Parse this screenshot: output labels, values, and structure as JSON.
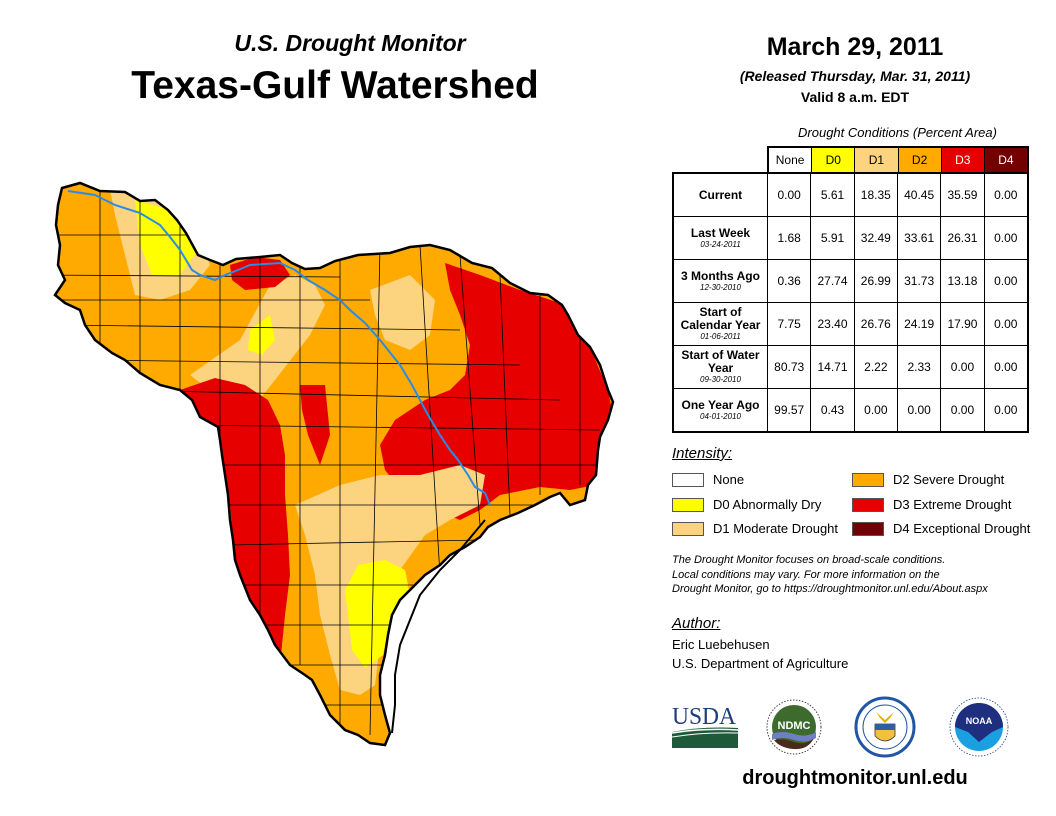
{
  "header": {
    "subtitle": "U.S. Drought Monitor",
    "title": "Texas-Gulf Watershed",
    "date": "March 29, 2011",
    "released": "(Released Thursday, Mar. 31, 2011)",
    "valid": "Valid 8 a.m. EDT"
  },
  "table": {
    "caption": "Drought Conditions (Percent Area)",
    "columns": [
      {
        "label": "None",
        "color": "#ffffff",
        "text_color": "#000000"
      },
      {
        "label": "D0",
        "color": "#ffff00",
        "text_color": "#000000"
      },
      {
        "label": "D1",
        "color": "#fcd37f",
        "text_color": "#000000"
      },
      {
        "label": "D2",
        "color": "#ffaa00",
        "text_color": "#000000"
      },
      {
        "label": "D3",
        "color": "#e60000",
        "text_color": "#ffffff"
      },
      {
        "label": "D4",
        "color": "#730000",
        "text_color": "#ffffff"
      }
    ],
    "rows": [
      {
        "label": "Current",
        "date": "",
        "values": [
          "0.00",
          "5.61",
          "18.35",
          "40.45",
          "35.59",
          "0.00"
        ]
      },
      {
        "label": "Last Week",
        "date": "03-24-2011",
        "values": [
          "1.68",
          "5.91",
          "32.49",
          "33.61",
          "26.31",
          "0.00"
        ]
      },
      {
        "label": "3 Months Ago",
        "date": "12-30-2010",
        "values": [
          "0.36",
          "27.74",
          "26.99",
          "31.73",
          "13.18",
          "0.00"
        ]
      },
      {
        "label": "Start of Calendar Year",
        "date": "01-06-2011",
        "values": [
          "7.75",
          "23.40",
          "26.76",
          "24.19",
          "17.90",
          "0.00"
        ]
      },
      {
        "label": "Start of Water Year",
        "date": "09-30-2010",
        "values": [
          "80.73",
          "14.71",
          "2.22",
          "2.33",
          "0.00",
          "0.00"
        ]
      },
      {
        "label": "One Year Ago",
        "date": "04-01-2010",
        "values": [
          "99.57",
          "0.43",
          "0.00",
          "0.00",
          "0.00",
          "0.00"
        ]
      }
    ]
  },
  "legend": {
    "title": "Intensity:",
    "items": [
      {
        "label": "None",
        "color": "#ffffff"
      },
      {
        "label": "D0 Abnormally Dry",
        "color": "#ffff00"
      },
      {
        "label": "D1 Moderate Drought",
        "color": "#fcd37f"
      },
      {
        "label": "D2 Severe Drought",
        "color": "#ffaa00"
      },
      {
        "label": "D3 Extreme Drought",
        "color": "#e60000"
      },
      {
        "label": "D4 Exceptional Drought",
        "color": "#730000"
      }
    ]
  },
  "note": {
    "line1": "The Drought Monitor focuses on broad-scale conditions.",
    "line2": "Local conditions may vary. For more information on the",
    "line3": "Drought Monitor, go to https://droughtmonitor.unl.edu/About.aspx"
  },
  "author": {
    "label": "Author:",
    "name": "Eric Luebehusen",
    "org": "U.S. Department of Agriculture"
  },
  "logos": {
    "usda": "USDA",
    "ndmc": "NDMC",
    "commerce": "Department of Commerce",
    "noaa": "NOAA"
  },
  "footer": {
    "site": "droughtmonitor.unl.edu"
  },
  "map": {
    "region": "Texas-Gulf Watershed",
    "river_color": "#2b8ce6"
  }
}
